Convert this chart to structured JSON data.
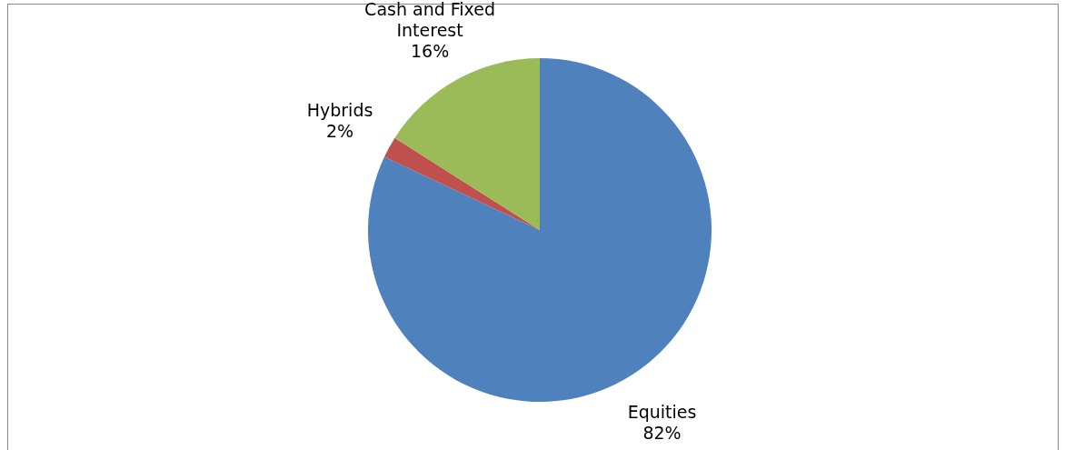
{
  "chart_data": {
    "type": "pie",
    "categories": [
      "Equities",
      "Hybrids",
      "Cash and Fixed Interest"
    ],
    "values": [
      82,
      2,
      16
    ],
    "colors": [
      "#4f81bd",
      "#c0504d",
      "#9bbb59"
    ],
    "value_labels": [
      "82%",
      "2%",
      "16%"
    ],
    "legend": false
  }
}
